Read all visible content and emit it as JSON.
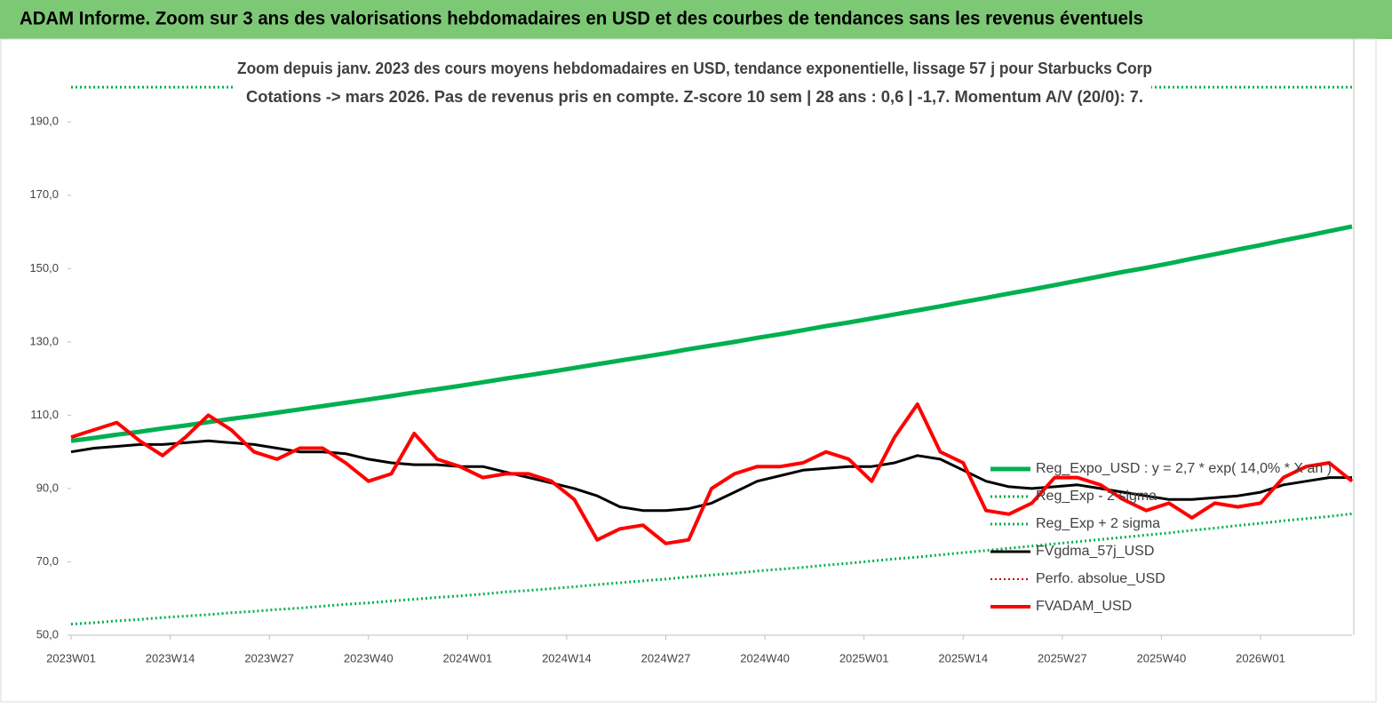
{
  "chart_data": {
    "type": "line",
    "title": "ADAM Informe. Zoom sur 3 ans des valorisations hebdomadaires en USD et des courbes de tendances sans les revenus éventuels",
    "subtitle": [
      "Zoom depuis janv. 2023 des cours moyens hebdomadaires en USD, tendance exponentielle, lissage 57 j pour Starbucks Corp",
      "Cotations -> mars 2026. Pas de revenus pris en compte. Z-score 10 sem | 28 ans : 0,6 | -1,7. Momentum A/V (20/0): 7."
    ],
    "x": [
      0,
      3,
      6,
      9,
      12,
      15,
      18,
      21,
      24,
      27,
      30,
      33,
      36,
      39,
      42,
      45,
      48,
      51,
      54,
      57,
      60,
      63,
      66,
      69,
      72,
      75,
      78,
      81,
      84,
      87,
      90,
      93,
      96,
      99,
      102,
      105,
      108,
      111,
      114,
      117,
      120,
      123,
      126,
      129,
      132,
      135,
      138,
      141,
      144,
      147,
      150,
      153,
      156,
      159,
      162,
      165,
      168
    ],
    "xlim": [
      0,
      168
    ],
    "xticks": [
      {
        "value": 0,
        "label": "2023W01"
      },
      {
        "value": 13,
        "label": "2023W14"
      },
      {
        "value": 26,
        "label": "2023W27"
      },
      {
        "value": 39,
        "label": "2023W40"
      },
      {
        "value": 52,
        "label": "2024W01"
      },
      {
        "value": 65,
        "label": "2024W14"
      },
      {
        "value": 78,
        "label": "2024W27"
      },
      {
        "value": 91,
        "label": "2024W40"
      },
      {
        "value": 104,
        "label": "2025W01"
      },
      {
        "value": 117,
        "label": "2025W14"
      },
      {
        "value": 130,
        "label": "2025W27"
      },
      {
        "value": 143,
        "label": "2025W40"
      },
      {
        "value": 156,
        "label": "2026W01"
      }
    ],
    "ylim": [
      50,
      200
    ],
    "yticks": [
      {
        "value": 50,
        "label": "50,0"
      },
      {
        "value": 70,
        "label": "70,0"
      },
      {
        "value": 90,
        "label": "90,0"
      },
      {
        "value": 110,
        "label": "110,0"
      },
      {
        "value": 130,
        "label": "130,0"
      },
      {
        "value": 150,
        "label": "150,0"
      },
      {
        "value": 170,
        "label": "170,0"
      },
      {
        "value": 190,
        "label": "190,0"
      }
    ],
    "series": [
      {
        "name": "Reg_Expo_USD : y = 2,7 * exp( 14,0% * X an )",
        "color": "#00b050",
        "style": "solid",
        "width": 5,
        "values": [
          103.0,
          103.8,
          104.7,
          105.5,
          106.4,
          107.2,
          108.1,
          109.0,
          109.8,
          110.7,
          111.6,
          112.5,
          113.4,
          114.3,
          115.2,
          116.2,
          117.1,
          118.0,
          119.0,
          120.0,
          120.9,
          121.9,
          122.9,
          123.9,
          124.9,
          125.9,
          126.9,
          128.0,
          129.0,
          130.0,
          131.1,
          132.1,
          133.2,
          134.3,
          135.3,
          136.4,
          137.5,
          138.6,
          139.7,
          140.9,
          142.0,
          143.2,
          144.3,
          145.5,
          146.7,
          147.9,
          149.1,
          150.2,
          151.4,
          152.7,
          153.9,
          155.2,
          156.4,
          157.7,
          158.9,
          160.2,
          161.5
        ]
      },
      {
        "name": "Reg_Exp - 2 sigma",
        "color": "#00b050",
        "style": "dotted",
        "width": 3,
        "values": [
          53.0,
          53.4,
          53.9,
          54.3,
          54.8,
          55.2,
          55.6,
          56.1,
          56.5,
          57.0,
          57.4,
          57.9,
          58.4,
          58.8,
          59.3,
          59.8,
          60.3,
          60.7,
          61.2,
          61.8,
          62.2,
          62.7,
          63.2,
          63.8,
          64.3,
          64.8,
          65.3,
          65.9,
          66.4,
          66.9,
          67.5,
          68.0,
          68.5,
          69.1,
          69.6,
          70.2,
          70.8,
          71.3,
          71.9,
          72.5,
          73.1,
          73.7,
          74.3,
          74.9,
          75.5,
          76.1,
          76.7,
          77.3,
          77.9,
          78.6,
          79.2,
          79.9,
          80.5,
          81.2,
          81.8,
          82.4,
          83.1
        ]
      },
      {
        "name": "Reg_Exp + 2 sigma",
        "color": "#00b050",
        "style": "dotted",
        "width": 3,
        "values": [
          199.5,
          199.5,
          199.5,
          199.5,
          199.5,
          199.5,
          199.5,
          199.5,
          199.5,
          199.5,
          199.5,
          199.5,
          199.5,
          199.5,
          199.5,
          199.5,
          199.5,
          199.5,
          199.5,
          199.5,
          199.5,
          199.5,
          199.5,
          199.5,
          199.5,
          199.5,
          199.5,
          199.5,
          199.5,
          199.5,
          199.5,
          199.5,
          199.5,
          199.5,
          199.5,
          199.5,
          199.5,
          199.5,
          199.5,
          199.5,
          199.5,
          199.5,
          199.5,
          199.5,
          199.5,
          199.5,
          199.5,
          199.5,
          199.5,
          199.5,
          199.5,
          199.5,
          199.5,
          199.5,
          199.5,
          199.5,
          199.5
        ]
      },
      {
        "name": "FVgdma_57j_USD",
        "color": "#000000",
        "style": "solid",
        "width": 3,
        "values": [
          100,
          101,
          101.5,
          102,
          102,
          102.5,
          103,
          102.5,
          102,
          101,
          100,
          100,
          99.5,
          98,
          97,
          96.5,
          96.5,
          96,
          96,
          94.5,
          93,
          91.5,
          90,
          88,
          85,
          84,
          84,
          84.5,
          86,
          89,
          92,
          93.5,
          95,
          95.5,
          96,
          96,
          97,
          99,
          98,
          95,
          92,
          90.5,
          90,
          90.5,
          91,
          90,
          89,
          88,
          87,
          87,
          87.5,
          88,
          89,
          91,
          92,
          93,
          93
        ]
      },
      {
        "name": "Perfo. absolue_USD",
        "color": "#c00000",
        "style": "dotted",
        "width": 2,
        "values": [
          null,
          null,
          null,
          null,
          null,
          null,
          null,
          null,
          null,
          null,
          null,
          null,
          null,
          null,
          null,
          null,
          null,
          null,
          null,
          null,
          null,
          null,
          null,
          null,
          null,
          null,
          null,
          null,
          null,
          null,
          null,
          null,
          null,
          null,
          null,
          null,
          null,
          null,
          null,
          null,
          null,
          null,
          null,
          null,
          null,
          null,
          null,
          null,
          null,
          null,
          null,
          null,
          null,
          null,
          null,
          null,
          null
        ]
      },
      {
        "name": "FVADAM_USD",
        "color": "#ff0000",
        "style": "solid",
        "width": 4,
        "values": [
          104,
          106,
          108,
          103,
          99,
          104,
          110,
          106,
          100,
          98,
          101,
          101,
          97,
          92,
          94,
          105,
          98,
          96,
          93,
          94,
          94,
          92,
          87,
          76,
          79,
          80,
          75,
          76,
          90,
          94,
          96,
          96,
          97,
          100,
          98,
          92,
          104,
          113,
          100,
          97,
          84,
          83,
          86,
          93,
          93,
          91,
          87,
          84,
          86,
          82,
          86,
          85,
          86,
          93,
          96,
          97,
          92
        ]
      }
    ]
  }
}
